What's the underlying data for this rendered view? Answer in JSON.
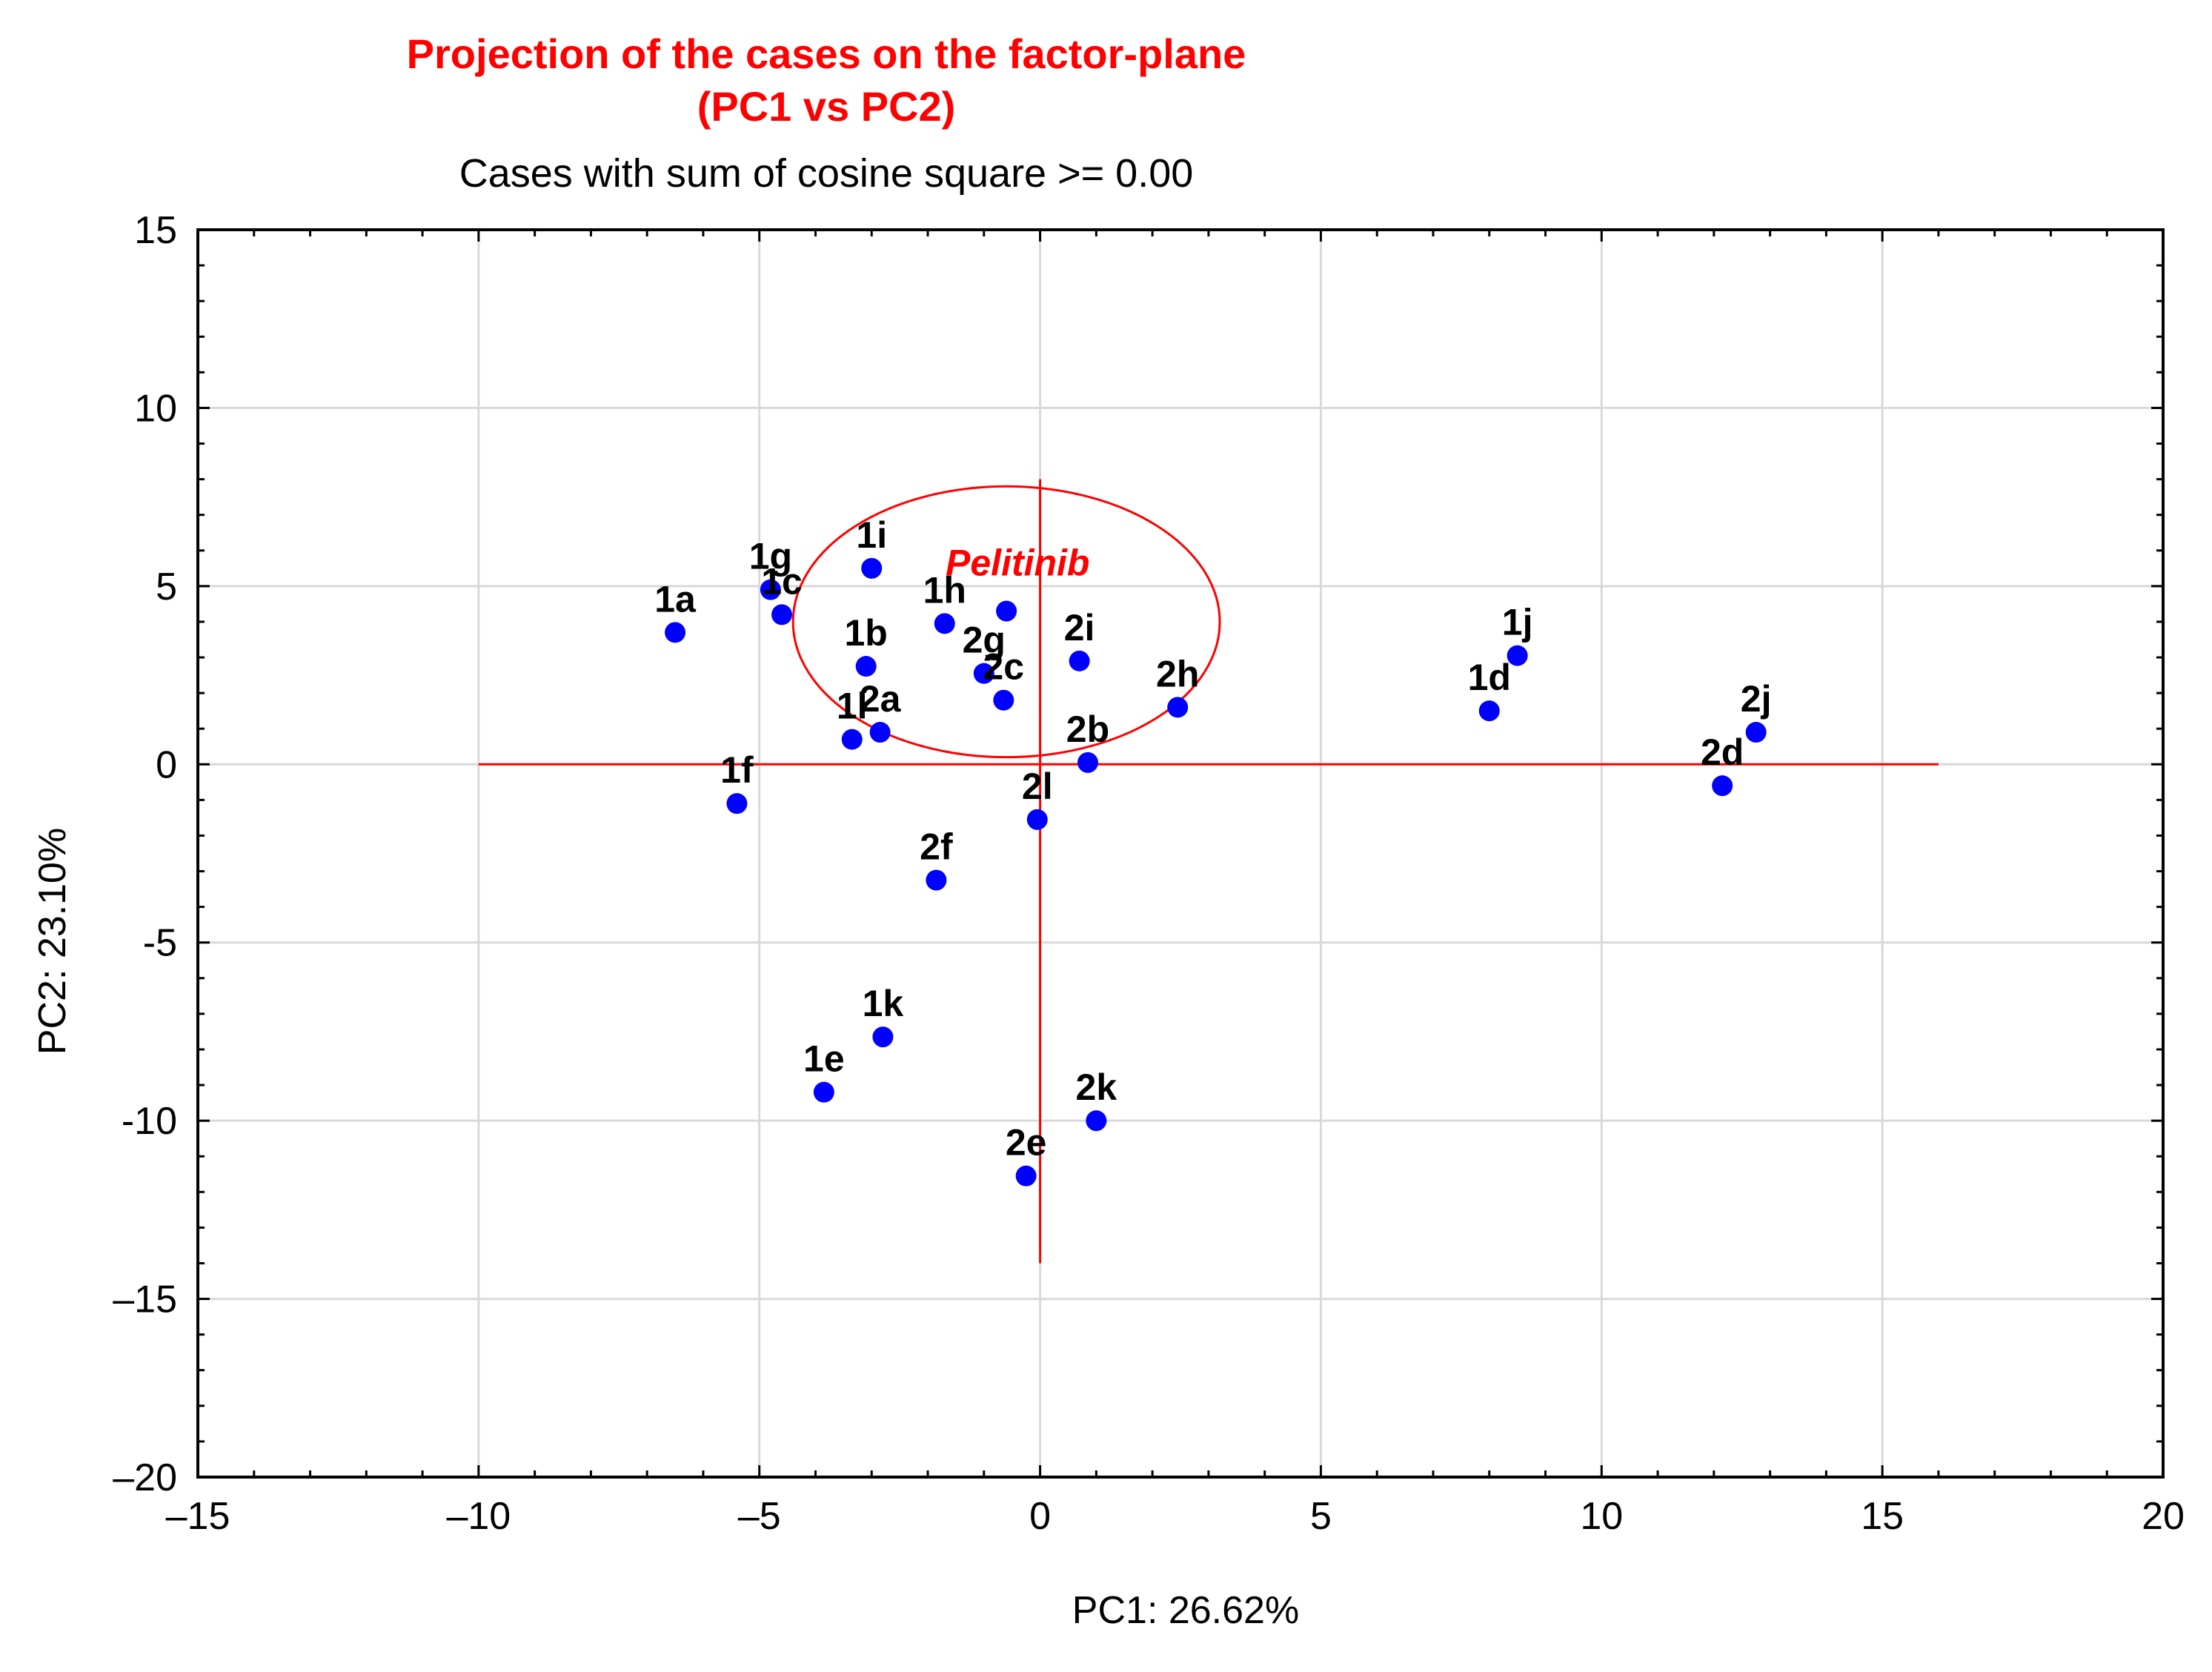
{
  "chart_data": {
    "type": "scatter",
    "title": "Projection of the cases on the factor-plane",
    "title_line2": "(PC1 vs PC2)",
    "subtitle": "Cases with sum of cosine square >=  0.00",
    "xlabel": "PC1: 26.62%",
    "ylabel": "PC2: 23.10%",
    "xlim": [
      -15,
      20
    ],
    "ylim": [
      -20,
      15
    ],
    "xticks": [
      -15,
      -10,
      -5,
      0,
      5,
      10,
      15,
      20
    ],
    "yticks": [
      15,
      10,
      5,
      0,
      -5,
      -10,
      -15,
      -20
    ],
    "xtick_labels": [
      "–15",
      "–10",
      "–5",
      "0",
      "5",
      "10",
      "15",
      "20"
    ],
    "ytick_labels": [
      "15",
      "10",
      "5",
      "0",
      "-5",
      "-10",
      "–15",
      "–20"
    ],
    "grid": true,
    "point_color": "#0000ff",
    "accent_color": "#ff0000",
    "points": [
      {
        "label": "1a",
        "x": -6.5,
        "y": 3.7
      },
      {
        "label": "1g",
        "x": -4.8,
        "y": 4.9
      },
      {
        "label": "1c",
        "x": -4.6,
        "y": 4.2
      },
      {
        "label": "1i",
        "x": -3.0,
        "y": 5.5
      },
      {
        "label": "1b",
        "x": -3.1,
        "y": 2.75
      },
      {
        "label": "1h",
        "x": -1.7,
        "y": 3.95
      },
      {
        "label": "",
        "x": -0.6,
        "y": 4.3
      },
      {
        "label": "2g",
        "x": -1.0,
        "y": 2.55
      },
      {
        "label": "2c",
        "x": -0.65,
        "y": 1.8
      },
      {
        "label": "2i",
        "x": 0.7,
        "y": 2.9
      },
      {
        "label": "2h",
        "x": 2.45,
        "y": 1.6
      },
      {
        "label": "1l",
        "x": -3.35,
        "y": 0.7
      },
      {
        "label": "2a",
        "x": -2.85,
        "y": 0.9
      },
      {
        "label": "2b",
        "x": 0.85,
        "y": 0.05
      },
      {
        "label": "1f",
        "x": -5.4,
        "y": -1.1
      },
      {
        "label": "2l",
        "x": -0.05,
        "y": -1.55
      },
      {
        "label": "2f",
        "x": -1.85,
        "y": -3.25
      },
      {
        "label": "1j",
        "x": 8.5,
        "y": 3.05
      },
      {
        "label": "1d",
        "x": 8.0,
        "y": 1.5
      },
      {
        "label": "2j",
        "x": 12.75,
        "y": 0.9
      },
      {
        "label": "2d",
        "x": 12.15,
        "y": -0.6
      },
      {
        "label": "1k",
        "x": -2.8,
        "y": -7.65
      },
      {
        "label": "1e",
        "x": -3.85,
        "y": -9.2
      },
      {
        "label": "2k",
        "x": 1.0,
        "y": -10.0
      },
      {
        "label": "2e",
        "x": -0.25,
        "y": -11.55
      }
    ],
    "reference_lines": {
      "horizontal": {
        "y": 0,
        "x_from": -10,
        "x_to": 16
      },
      "vertical": {
        "x": 0,
        "y_from": -14,
        "y_to": 8
      }
    },
    "circle": {
      "cx": -0.6,
      "cy": 4.0,
      "r": 3.8
    },
    "annotation": {
      "text": "Pelitinib",
      "x": -0.4,
      "y": 5.3
    }
  }
}
